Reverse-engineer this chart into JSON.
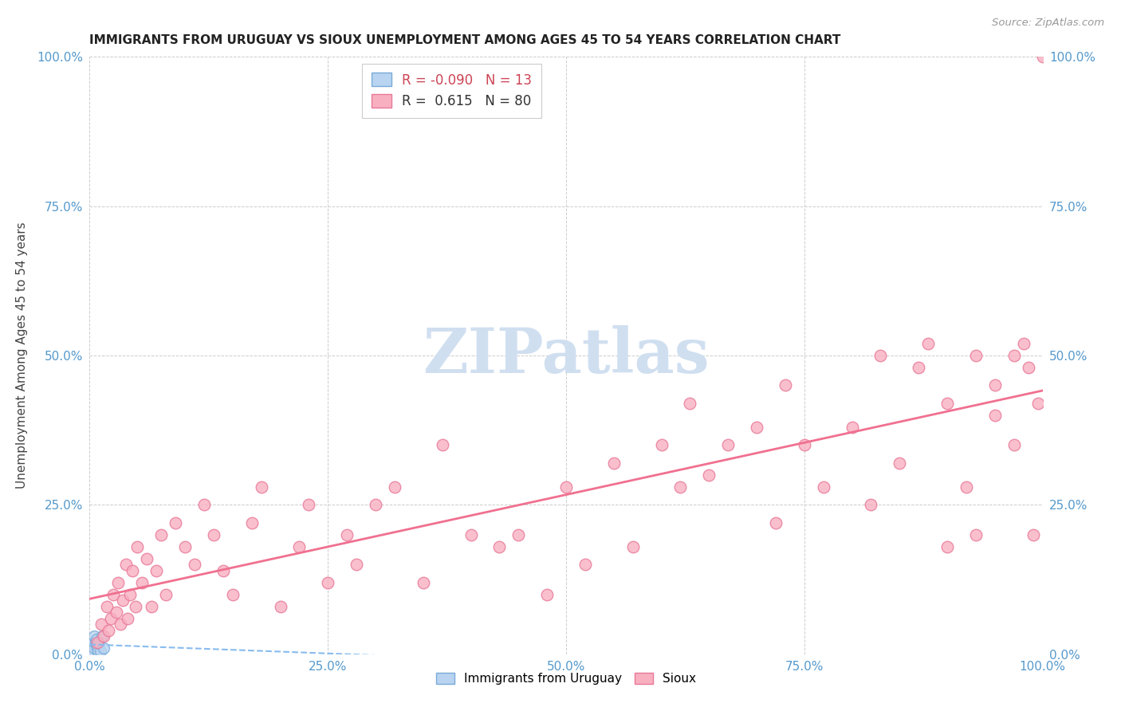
{
  "title": "IMMIGRANTS FROM URUGUAY VS SIOUX UNEMPLOYMENT AMONG AGES 45 TO 54 YEARS CORRELATION CHART",
  "source": "Source: ZipAtlas.com",
  "ylabel": "Unemployment Among Ages 45 to 54 years",
  "legend_label1": "Immigrants from Uruguay",
  "legend_label2": "Sioux",
  "r1": -0.09,
  "n1": 13,
  "r2": 0.615,
  "n2": 80,
  "color1_face": "#b8d4f0",
  "color1_edge": "#7aaad8",
  "color2_face": "#f8b0c0",
  "color2_edge": "#e87898",
  "line1_color": "#88bbee",
  "line2_color": "#f07090",
  "watermark_color": "#d0dff0",
  "xlim": [
    0.0,
    1.0
  ],
  "ylim": [
    0.0,
    1.0
  ],
  "xtick_labels": [
    "0.0%",
    "25.0%",
    "50.0%",
    "75.0%",
    "100.0%"
  ],
  "xtick_positions": [
    0.0,
    0.25,
    0.5,
    0.75,
    1.0
  ],
  "ytick_labels": [
    "0.0%",
    "25.0%",
    "50.0%",
    "75.0%",
    "100.0%"
  ],
  "ytick_positions": [
    0.0,
    0.25,
    0.5,
    0.75,
    1.0
  ],
  "uruguay_x": [
    0.003,
    0.004,
    0.005,
    0.005,
    0.006,
    0.007,
    0.007,
    0.008,
    0.009,
    0.01,
    0.011,
    0.013,
    0.015
  ],
  "uruguay_y": [
    0.005,
    0.02,
    0.01,
    0.03,
    0.02,
    0.015,
    0.025,
    0.01,
    0.005,
    0.02,
    0.005,
    0.03,
    0.01
  ],
  "sioux_x": [
    0.008,
    0.012,
    0.015,
    0.018,
    0.02,
    0.022,
    0.025,
    0.028,
    0.03,
    0.032,
    0.035,
    0.038,
    0.04,
    0.042,
    0.045,
    0.048,
    0.05,
    0.055,
    0.06,
    0.065,
    0.07,
    0.075,
    0.08,
    0.09,
    0.1,
    0.11,
    0.12,
    0.13,
    0.14,
    0.15,
    0.17,
    0.18,
    0.2,
    0.22,
    0.23,
    0.25,
    0.27,
    0.28,
    0.3,
    0.32,
    0.35,
    0.37,
    0.4,
    0.43,
    0.45,
    0.48,
    0.5,
    0.52,
    0.55,
    0.57,
    0.6,
    0.62,
    0.63,
    0.65,
    0.67,
    0.7,
    0.72,
    0.73,
    0.75,
    0.77,
    0.8,
    0.82,
    0.83,
    0.85,
    0.87,
    0.88,
    0.9,
    0.92,
    0.93,
    0.95,
    0.97,
    0.98,
    0.985,
    0.99,
    0.995,
    1.0,
    0.97,
    0.95,
    0.93,
    0.9
  ],
  "sioux_y": [
    0.02,
    0.05,
    0.03,
    0.08,
    0.04,
    0.06,
    0.1,
    0.07,
    0.12,
    0.05,
    0.09,
    0.15,
    0.06,
    0.1,
    0.14,
    0.08,
    0.18,
    0.12,
    0.16,
    0.08,
    0.14,
    0.2,
    0.1,
    0.22,
    0.18,
    0.15,
    0.25,
    0.2,
    0.14,
    0.1,
    0.22,
    0.28,
    0.08,
    0.18,
    0.25,
    0.12,
    0.2,
    0.15,
    0.25,
    0.28,
    0.12,
    0.35,
    0.2,
    0.18,
    0.2,
    0.1,
    0.28,
    0.15,
    0.32,
    0.18,
    0.35,
    0.28,
    0.42,
    0.3,
    0.35,
    0.38,
    0.22,
    0.45,
    0.35,
    0.28,
    0.38,
    0.25,
    0.5,
    0.32,
    0.48,
    0.52,
    0.42,
    0.28,
    0.5,
    0.4,
    0.35,
    0.52,
    0.48,
    0.2,
    0.42,
    1.0,
    0.5,
    0.45,
    0.2,
    0.18
  ]
}
